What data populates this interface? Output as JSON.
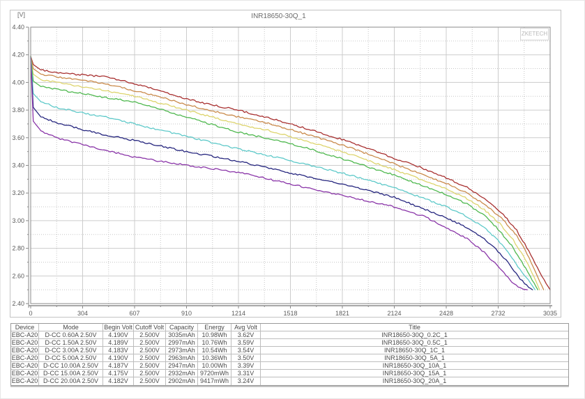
{
  "chart": {
    "title": "INR18650-30Q_1",
    "y_unit_label": "[V]",
    "watermark": "ZKETECH",
    "colors": {
      "plot_border": "#8a8a8a",
      "grid_major": "#cccccc",
      "grid_minor": "#c6c6c6",
      "tick_label": "#5a5a5a"
    }
  },
  "chart_data": {
    "type": "line",
    "title": "INR18650-30Q_1",
    "xlabel": "",
    "ylabel": "[V]",
    "xlim": [
      0,
      3035
    ],
    "ylim": [
      2.4,
      4.4
    ],
    "grid": true,
    "legend_position": "none",
    "x_ticks": [
      "0",
      "304",
      "607",
      "910",
      "1214",
      "1518",
      "1821",
      "2124",
      "2428",
      "2732",
      "3035"
    ],
    "y_ticks": [
      "4.40",
      "4.20",
      "4.00",
      "3.80",
      "3.60",
      "3.40",
      "3.20",
      "3.00",
      "2.80",
      "2.60",
      "2.40"
    ],
    "series": [
      {
        "name": "INR18650-30Q_0.2C_1",
        "current": "0.60A",
        "color": "#a83030",
        "points": [
          [
            0,
            4.19
          ],
          [
            15,
            4.13
          ],
          [
            60,
            4.09
          ],
          [
            150,
            4.07
          ],
          [
            300,
            4.055
          ],
          [
            440,
            4.04
          ],
          [
            550,
            4.01
          ],
          [
            607,
            3.99
          ],
          [
            700,
            3.96
          ],
          [
            800,
            3.92
          ],
          [
            910,
            3.88
          ],
          [
            1050,
            3.84
          ],
          [
            1214,
            3.8
          ],
          [
            1400,
            3.74
          ],
          [
            1600,
            3.67
          ],
          [
            1866,
            3.57
          ],
          [
            2000,
            3.51
          ],
          [
            2124,
            3.45
          ],
          [
            2250,
            3.4
          ],
          [
            2428,
            3.31
          ],
          [
            2550,
            3.24
          ],
          [
            2650,
            3.16
          ],
          [
            2750,
            3.06
          ],
          [
            2840,
            2.93
          ],
          [
            2910,
            2.78
          ],
          [
            2960,
            2.66
          ],
          [
            3000,
            2.57
          ],
          [
            3035,
            2.5
          ]
        ]
      },
      {
        "name": "INR18650-30Q_0.5C_1",
        "current": "1.50A",
        "color": "#c98a4b",
        "points": [
          [
            0,
            4.189
          ],
          [
            15,
            4.1
          ],
          [
            60,
            4.06
          ],
          [
            150,
            4.04
          ],
          [
            300,
            4.02
          ],
          [
            440,
            3.99
          ],
          [
            607,
            3.94
          ],
          [
            800,
            3.88
          ],
          [
            910,
            3.84
          ],
          [
            1214,
            3.75
          ],
          [
            1400,
            3.7
          ],
          [
            1600,
            3.63
          ],
          [
            1866,
            3.53
          ],
          [
            2124,
            3.41
          ],
          [
            2428,
            3.27
          ],
          [
            2550,
            3.2
          ],
          [
            2650,
            3.12
          ],
          [
            2750,
            3.02
          ],
          [
            2840,
            2.89
          ],
          [
            2900,
            2.76
          ],
          [
            2950,
            2.63
          ],
          [
            2997,
            2.5
          ]
        ]
      },
      {
        "name": "INR18650-30Q_1C_1",
        "current": "3.00A",
        "color": "#ddd46e",
        "points": [
          [
            0,
            4.183
          ],
          [
            15,
            4.06
          ],
          [
            60,
            4.02
          ],
          [
            150,
            4.0
          ],
          [
            300,
            3.97
          ],
          [
            440,
            3.94
          ],
          [
            607,
            3.9
          ],
          [
            910,
            3.8
          ],
          [
            1214,
            3.7
          ],
          [
            1400,
            3.65
          ],
          [
            1600,
            3.58
          ],
          [
            1866,
            3.48
          ],
          [
            2124,
            3.37
          ],
          [
            2428,
            3.23
          ],
          [
            2550,
            3.16
          ],
          [
            2650,
            3.08
          ],
          [
            2740,
            2.98
          ],
          [
            2820,
            2.86
          ],
          [
            2890,
            2.72
          ],
          [
            2940,
            2.6
          ],
          [
            2973,
            2.5
          ]
        ]
      },
      {
        "name": "INR18650-30Q_5A_1",
        "current": "5.00A",
        "color": "#4fb84f",
        "points": [
          [
            0,
            4.19
          ],
          [
            15,
            4.01
          ],
          [
            60,
            3.97
          ],
          [
            150,
            3.95
          ],
          [
            300,
            3.92
          ],
          [
            440,
            3.89
          ],
          [
            607,
            3.86
          ],
          [
            910,
            3.75
          ],
          [
            1214,
            3.64
          ],
          [
            1400,
            3.59
          ],
          [
            1600,
            3.53
          ],
          [
            1866,
            3.43
          ],
          [
            2124,
            3.33
          ],
          [
            2428,
            3.19
          ],
          [
            2550,
            3.12
          ],
          [
            2650,
            3.04
          ],
          [
            2730,
            2.94
          ],
          [
            2810,
            2.82
          ],
          [
            2880,
            2.68
          ],
          [
            2930,
            2.57
          ],
          [
            2963,
            2.5
          ]
        ]
      },
      {
        "name": "INR18650-30Q_10A_1",
        "current": "10.00A",
        "color": "#5ec9c9",
        "points": [
          [
            0,
            4.187
          ],
          [
            15,
            3.92
          ],
          [
            60,
            3.86
          ],
          [
            150,
            3.82
          ],
          [
            300,
            3.78
          ],
          [
            440,
            3.75
          ],
          [
            607,
            3.7
          ],
          [
            910,
            3.61
          ],
          [
            1214,
            3.52
          ],
          [
            1500,
            3.44
          ],
          [
            1866,
            3.33
          ],
          [
            2124,
            3.24
          ],
          [
            2428,
            3.1
          ],
          [
            2550,
            3.03
          ],
          [
            2650,
            2.95
          ],
          [
            2730,
            2.86
          ],
          [
            2800,
            2.75
          ],
          [
            2870,
            2.63
          ],
          [
            2920,
            2.55
          ],
          [
            2947,
            2.5
          ]
        ]
      },
      {
        "name": "INR18650-30Q_15A_1",
        "current": "15.00A",
        "color": "#25257e",
        "points": [
          [
            0,
            4.175
          ],
          [
            15,
            3.82
          ],
          [
            60,
            3.75
          ],
          [
            150,
            3.71
          ],
          [
            300,
            3.66
          ],
          [
            440,
            3.62
          ],
          [
            607,
            3.58
          ],
          [
            910,
            3.5
          ],
          [
            1214,
            3.43
          ],
          [
            1500,
            3.35
          ],
          [
            1866,
            3.25
          ],
          [
            2124,
            3.17
          ],
          [
            2428,
            3.02
          ],
          [
            2550,
            2.95
          ],
          [
            2650,
            2.87
          ],
          [
            2730,
            2.78
          ],
          [
            2800,
            2.68
          ],
          [
            2860,
            2.58
          ],
          [
            2910,
            2.52
          ],
          [
            2932,
            2.5
          ]
        ]
      },
      {
        "name": "INR18650-30Q_20A_1",
        "current": "20.00A",
        "color": "#8a35a8",
        "points": [
          [
            0,
            4.182
          ],
          [
            15,
            3.72
          ],
          [
            60,
            3.65
          ],
          [
            150,
            3.6
          ],
          [
            300,
            3.55
          ],
          [
            440,
            3.51
          ],
          [
            607,
            3.46
          ],
          [
            910,
            3.4
          ],
          [
            1214,
            3.35
          ],
          [
            1500,
            3.27
          ],
          [
            1866,
            3.17
          ],
          [
            2124,
            3.1
          ],
          [
            2300,
            3.03
          ],
          [
            2428,
            2.95
          ],
          [
            2550,
            2.87
          ],
          [
            2650,
            2.77
          ],
          [
            2730,
            2.67
          ],
          [
            2800,
            2.57
          ],
          [
            2860,
            2.51
          ],
          [
            2902,
            2.5
          ]
        ]
      }
    ]
  },
  "table": {
    "headers": [
      "Device",
      "Mode",
      "Begin Volt",
      "Cutoff Volt",
      "Capacity",
      "Energy",
      "Avg Volt",
      "Title"
    ],
    "rows": [
      [
        "EBC-A20",
        "D-CC 0.60A 2.50V",
        "4.190V",
        "2.500V",
        "3035mAh",
        "10.98Wh",
        "3.62V",
        "INR18650-30Q_0.2C_1"
      ],
      [
        "EBC-A20",
        "D-CC 1.50A 2.50V",
        "4.189V",
        "2.500V",
        "2997mAh",
        "10.76Wh",
        "3.59V",
        "INR18650-30Q_0.5C_1"
      ],
      [
        "EBC-A20",
        "D-CC 3.00A 2.50V",
        "4.183V",
        "2.500V",
        "2973mAh",
        "10.54Wh",
        "3.54V",
        "INR18650-30Q_1C_1"
      ],
      [
        "EBC-A20",
        "D-CC 5.00A 2.50V",
        "4.190V",
        "2.500V",
        "2963mAh",
        "10.36Wh",
        "3.50V",
        "INR18650-30Q_5A_1"
      ],
      [
        "EBC-A20",
        "D-CC 10.00A 2.50V",
        "4.187V",
        "2.500V",
        "2947mAh",
        "10.00Wh",
        "3.39V",
        "INR18650-30Q_10A_1"
      ],
      [
        "EBC-A20",
        "D-CC 15.00A 2.50V",
        "4.175V",
        "2.500V",
        "2932mAh",
        "9720mWh",
        "3.31V",
        "INR18650-30Q_15A_1"
      ],
      [
        "EBC-A20",
        "D-CC 20.00A 2.50V",
        "4.182V",
        "2.500V",
        "2902mAh",
        "9417mWh",
        "3.24V",
        "INR18650-30Q_20A_1"
      ]
    ]
  }
}
